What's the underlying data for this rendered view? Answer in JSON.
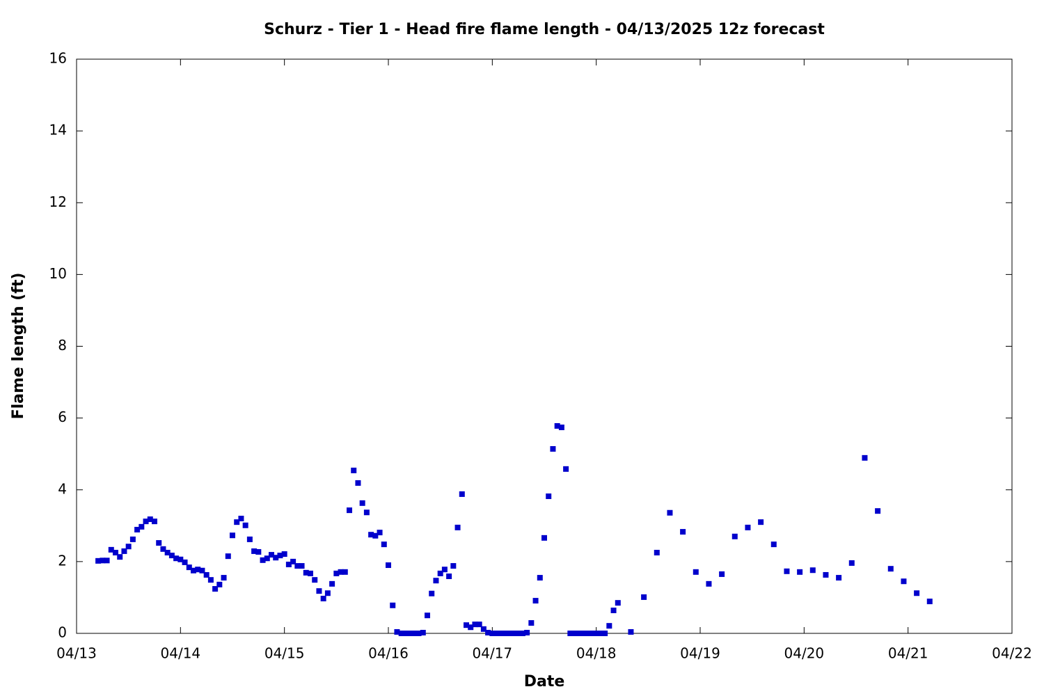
{
  "chart_data": {
    "type": "scatter",
    "title": "Schurz - Tier 1 - Head fire flame length - 04/13/2025 12z forecast",
    "x_label": "Date",
    "y_label": "Flame length (ft)",
    "color": "#0000cc",
    "xlim": [
      0,
      216
    ],
    "xticks": [
      {
        "value": 0,
        "label": "04/13"
      },
      {
        "value": 24,
        "label": "04/14"
      },
      {
        "value": 48,
        "label": "04/15"
      },
      {
        "value": 72,
        "label": "04/16"
      },
      {
        "value": 96,
        "label": "04/17"
      },
      {
        "value": 120,
        "label": "04/18"
      },
      {
        "value": 144,
        "label": "04/19"
      },
      {
        "value": 168,
        "label": "04/20"
      },
      {
        "value": 192,
        "label": "04/21"
      },
      {
        "value": 216,
        "label": "04/22"
      }
    ],
    "ylim": [
      0,
      16
    ],
    "yticks": [
      0,
      2,
      4,
      6,
      8,
      10,
      12,
      14,
      16
    ],
    "x": [
      5,
      6,
      7,
      8,
      9,
      10,
      11,
      12,
      13,
      14,
      15,
      16,
      17,
      18,
      19,
      20,
      21,
      22,
      23,
      24,
      25,
      26,
      27,
      28,
      29,
      30,
      31,
      32,
      33,
      34,
      35,
      36,
      37,
      38,
      39,
      40,
      41,
      42,
      43,
      44,
      45,
      46,
      47,
      48,
      49,
      50,
      51,
      52,
      53,
      54,
      55,
      56,
      57,
      58,
      59,
      60,
      61,
      62,
      63,
      64,
      65,
      66,
      67,
      68,
      69,
      70,
      71,
      72,
      73,
      74,
      75,
      76,
      77,
      78,
      79,
      80,
      81,
      82,
      83,
      84,
      85,
      86,
      87,
      88,
      89,
      90,
      91,
      92,
      93,
      94,
      95,
      96,
      97,
      98,
      99,
      100,
      101,
      102,
      103,
      104,
      105,
      106,
      107,
      108,
      109,
      110,
      111,
      112,
      113,
      114,
      115,
      116,
      117,
      118,
      119,
      120,
      121,
      122,
      123,
      124,
      125,
      128,
      131,
      134,
      137,
      140,
      143,
      146,
      149,
      152,
      155,
      158,
      161,
      164,
      167,
      170,
      173,
      176,
      179,
      182,
      185,
      188,
      191,
      194,
      197
    ],
    "values": [
      2.02,
      2.03,
      2.03,
      2.33,
      2.25,
      2.13,
      2.29,
      2.42,
      2.62,
      2.89,
      2.97,
      3.12,
      3.18,
      3.12,
      2.52,
      2.35,
      2.25,
      2.17,
      2.09,
      2.06,
      1.98,
      1.84,
      1.75,
      1.78,
      1.75,
      1.63,
      1.49,
      1.24,
      1.36,
      1.55,
      2.15,
      2.73,
      3.1,
      3.2,
      3.01,
      2.62,
      2.29,
      2.27,
      2.04,
      2.09,
      2.19,
      2.11,
      2.17,
      2.21,
      1.92,
      2.0,
      1.88,
      1.88,
      1.69,
      1.67,
      1.49,
      1.18,
      0.97,
      1.12,
      1.38,
      1.67,
      1.71,
      1.71,
      3.43,
      4.54,
      4.19,
      3.63,
      3.37,
      2.75,
      2.72,
      2.81,
      2.48,
      1.9,
      0.78,
      0.04,
      0,
      0,
      0,
      0,
      0,
      0.02,
      0.5,
      1.11,
      1.47,
      1.67,
      1.78,
      1.59,
      1.88,
      2.95,
      3.88,
      0.23,
      0.17,
      0.25,
      0.25,
      0.12,
      0.02,
      0,
      0,
      0,
      0,
      0,
      0,
      0,
      0,
      0.02,
      0.29,
      0.91,
      1.55,
      2.66,
      3.82,
      5.14,
      5.78,
      5.74,
      4.58,
      0,
      0,
      0,
      0,
      0,
      0,
      0,
      0,
      0,
      0.21,
      0.64,
      0.85,
      0.04,
      1.01,
      2.25,
      3.36,
      2.83,
      1.71,
      1.38,
      1.65,
      2.7,
      2.95,
      3.1,
      2.48,
      1.73,
      1.71,
      1.76,
      1.63,
      1.55,
      1.96,
      4.89,
      3.41,
      1.8,
      1.45,
      1.12,
      0.89
    ]
  }
}
